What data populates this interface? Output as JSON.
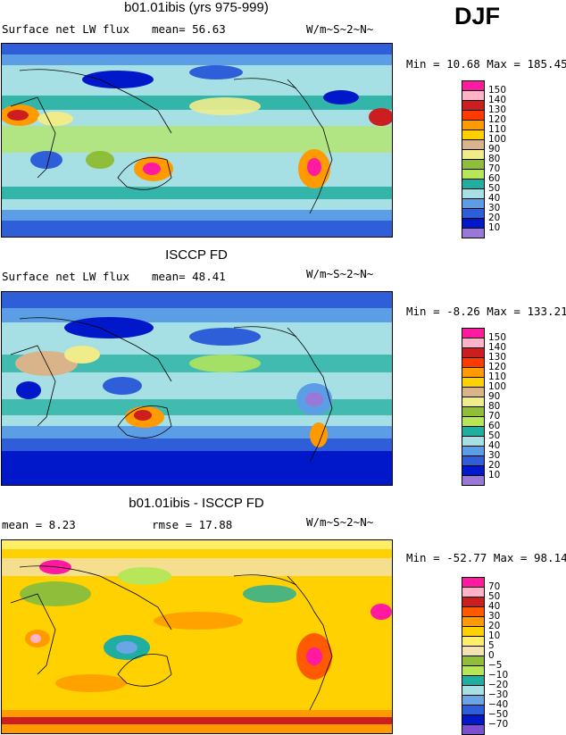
{
  "season": "DJF",
  "panels": [
    {
      "title": "b01.01ibis (yrs 975-999)",
      "left_text": "Surface net LW flux",
      "mid_text": "mean=  56.63",
      "units": "W/m~S~2~N~",
      "minmax": "Min =  10.68 Max = 185.45"
    },
    {
      "title": "ISCCP FD",
      "left_text": "Surface net LW flux",
      "mid_text": "mean=  48.41",
      "units": "W/m~S~2~N~",
      "minmax": "Min =  -8.26 Max = 133.21"
    },
    {
      "title": "b01.01ibis - ISCCP FD",
      "left_text": "mean =   8.23",
      "mid_text": "rmse =  17.88",
      "units": "W/m~S~2~N~",
      "minmax": "Min = -52.77 Max =  98.14"
    }
  ],
  "colorbars": {
    "field": {
      "labels": [
        "150",
        "140",
        "130",
        "120",
        "110",
        "100",
        "90",
        "80",
        "70",
        "60",
        "50",
        "40",
        "30",
        "20",
        "10"
      ],
      "colors": [
        "#ff1aa0",
        "#ffb3c8",
        "#cc1e1e",
        "#ff3a00",
        "#ff9a00",
        "#ffd100",
        "#d9b48a",
        "#f0ec8a",
        "#8fbf3a",
        "#b7e659",
        "#1fae9f",
        "#a6e0e4",
        "#5c9ee6",
        "#2e5fd9",
        "#0018c9",
        "#9a78d8"
      ]
    },
    "diff": {
      "labels": [
        "70",
        "50",
        "40",
        "30",
        "20",
        "10",
        "5",
        "0",
        "−5",
        "−10",
        "−20",
        "−30",
        "−40",
        "−50",
        "−70"
      ],
      "colors": [
        "#ff1aa0",
        "#ffb3c8",
        "#cc1e1e",
        "#ff5a00",
        "#ff9a00",
        "#ffd100",
        "#ffee66",
        "#f3e2b3",
        "#8fbf3a",
        "#b7e659",
        "#1fae9f",
        "#a6e0e4",
        "#6aa6e6",
        "#2e5fd9",
        "#0018c9",
        "#7a4fd0"
      ]
    }
  },
  "chart_data": [
    {
      "type": "heatmap",
      "title": "b01.01ibis (yrs 975-999)",
      "variable": "Surface net LW flux",
      "units": "W/m~S~2~N~",
      "mean": 56.63,
      "min": 10.68,
      "max": 185.45,
      "levels": [
        10,
        20,
        30,
        40,
        50,
        60,
        70,
        80,
        90,
        100,
        110,
        120,
        130,
        140,
        150
      ]
    },
    {
      "type": "heatmap",
      "title": "ISCCP FD",
      "variable": "Surface net LW flux",
      "units": "W/m~S~2~N~",
      "mean": 48.41,
      "min": -8.26,
      "max": 133.21,
      "levels": [
        10,
        20,
        30,
        40,
        50,
        60,
        70,
        80,
        90,
        100,
        110,
        120,
        130,
        140,
        150
      ]
    },
    {
      "type": "heatmap",
      "title": "b01.01ibis - ISCCP FD",
      "units": "W/m~S~2~N~",
      "mean": 8.23,
      "rmse": 17.88,
      "min": -52.77,
      "max": 98.14,
      "levels": [
        -70,
        -50,
        -40,
        -30,
        -20,
        -10,
        -5,
        0,
        5,
        10,
        20,
        30,
        40,
        50,
        70
      ]
    }
  ]
}
